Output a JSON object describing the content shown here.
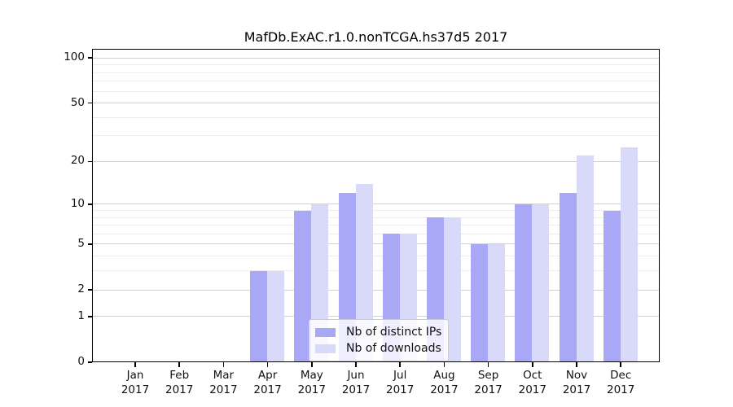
{
  "chart_data": {
    "type": "bar",
    "title": "MafDb.ExAC.r1.0.nonTCGA.hs37d5 2017",
    "categories": [
      "Jan",
      "Feb",
      "Mar",
      "Apr",
      "May",
      "Jun",
      "Jul",
      "Aug",
      "Sep",
      "Oct",
      "Nov",
      "Dec"
    ],
    "category_year": "2017",
    "series": [
      {
        "name": "Nb of distinct IPs",
        "color": "#a8a8f7",
        "values": [
          0,
          0,
          0,
          3,
          9,
          12,
          6,
          8,
          5,
          10,
          12,
          9
        ]
      },
      {
        "name": "Nb of downloads",
        "color": "#d9d9f9",
        "values": [
          0,
          0,
          0,
          3,
          10,
          14,
          6,
          8,
          5,
          10,
          22,
          25
        ]
      }
    ],
    "yscale": "log1p",
    "ylim": [
      0,
      115
    ],
    "yticks": [
      100,
      50,
      20,
      10,
      5,
      2,
      1,
      0
    ],
    "yticks_minor": [
      90,
      80,
      70,
      60,
      40,
      30,
      9,
      8,
      7,
      6,
      4,
      3
    ],
    "grid": true,
    "legend_position": "lower-center"
  },
  "colors": {
    "background": "#ffffff",
    "grid_major": "#d0d0d0",
    "grid_minor": "#ececec",
    "spine": "#000000",
    "text": "#111111"
  }
}
